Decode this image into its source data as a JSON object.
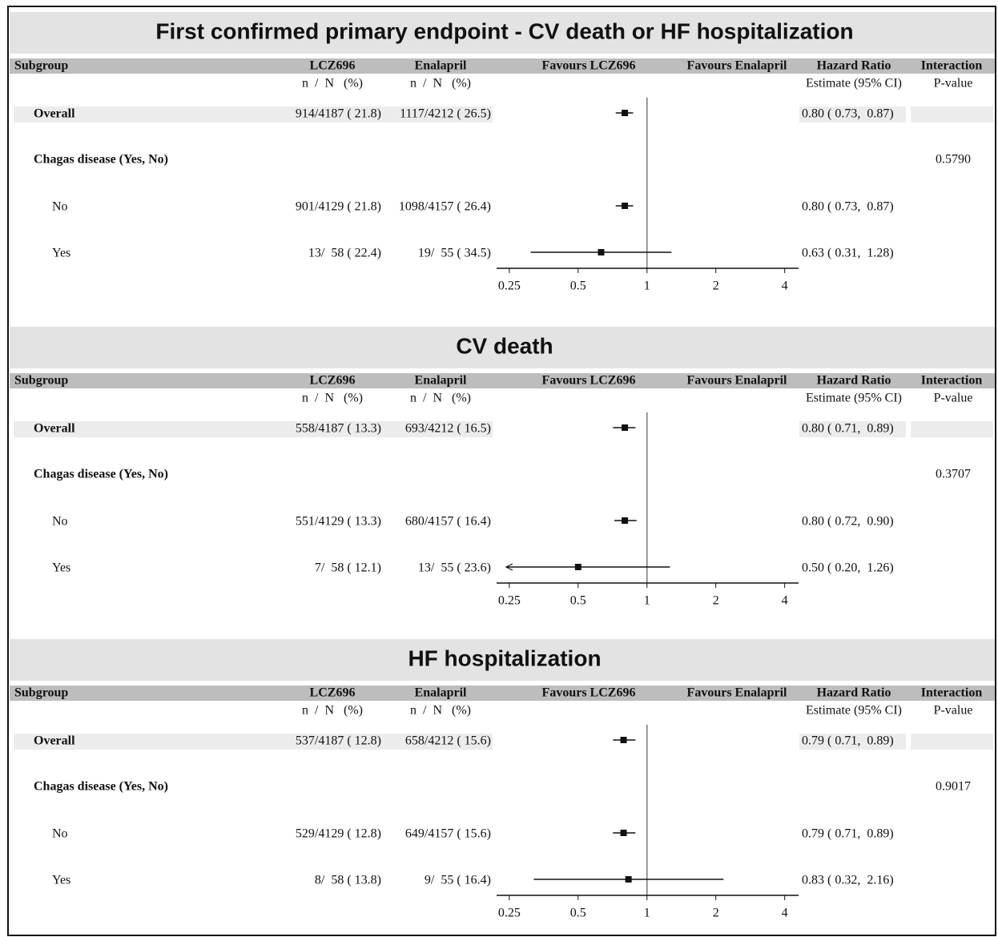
{
  "chart_data": [
    {
      "type": "forest",
      "title": "First confirmed primary endpoint - CV death or HF hospitalization",
      "headers": {
        "subgroup": "Subgroup",
        "lcz": "LCZ696",
        "enal": "Enalapril",
        "fav_left": "Favours LCZ696",
        "fav_right": "Favours Enalapril",
        "hr": "Hazard Ratio",
        "interaction": "Interaction",
        "lcz_sub": "n  /  N   (%)",
        "enal_sub": "n  /  N   (%)",
        "hr_sub": "Estimate (95% CI)",
        "int_sub": "P-value"
      },
      "rows": [
        {
          "label": "Overall",
          "lcz": "914/4187 ( 21.8)",
          "enal": "1117/4212 ( 26.5)",
          "hr_label": "0.80 ( 0.73,  0.87)",
          "estimate": 0.8,
          "lower": 0.73,
          "upper": 0.87
        },
        {
          "label": "Chagas disease (Yes, No)",
          "p_value": "0.5790"
        },
        {
          "label": "No",
          "lcz": "901/4129 ( 21.8)",
          "enal": "1098/4157 ( 26.4)",
          "hr_label": "0.80 ( 0.73,  0.87)",
          "estimate": 0.8,
          "lower": 0.73,
          "upper": 0.87
        },
        {
          "label": "Yes",
          "lcz": "13/  58 ( 22.4)",
          "enal": "19/  55 ( 34.5)",
          "hr_label": "0.63 ( 0.31,  1.28)",
          "estimate": 0.63,
          "lower": 0.31,
          "upper": 1.28
        }
      ],
      "log_x": true,
      "xlim": [
        0.22,
        4.6
      ],
      "xticks": [
        0.25,
        0.5,
        1,
        2,
        4
      ],
      "reference": 1
    },
    {
      "type": "forest",
      "title": "CV death",
      "headers": {
        "subgroup": "Subgroup",
        "lcz": "LCZ696",
        "enal": "Enalapril",
        "fav_left": "Favours LCZ696",
        "fav_right": "Favours Enalapril",
        "hr": "Hazard Ratio",
        "interaction": "Interaction",
        "lcz_sub": "n  /  N   (%)",
        "enal_sub": "n  /  N   (%)",
        "hr_sub": "Estimate (95% CI)",
        "int_sub": "P-value"
      },
      "rows": [
        {
          "label": "Overall",
          "lcz": "558/4187 ( 13.3)",
          "enal": "693/4212 ( 16.5)",
          "hr_label": "0.80 ( 0.71,  0.89)",
          "estimate": 0.8,
          "lower": 0.71,
          "upper": 0.89
        },
        {
          "label": "Chagas disease (Yes, No)",
          "p_value": "0.3707"
        },
        {
          "label": "No",
          "lcz": "551/4129 ( 13.3)",
          "enal": "680/4157 ( 16.4)",
          "hr_label": "0.80 ( 0.72,  0.90)",
          "estimate": 0.8,
          "lower": 0.72,
          "upper": 0.9
        },
        {
          "label": "Yes",
          "lcz": "7/  58 ( 12.1)",
          "enal": "13/  55 ( 23.6)",
          "hr_label": "0.50 ( 0.20,  1.26)",
          "estimate": 0.5,
          "lower": 0.2,
          "upper": 1.26
        }
      ],
      "log_x": true,
      "xlim": [
        0.22,
        4.6
      ],
      "xticks": [
        0.25,
        0.5,
        1,
        2,
        4
      ],
      "reference": 1
    },
    {
      "type": "forest",
      "title": "HF hospitalization",
      "headers": {
        "subgroup": "Subgroup",
        "lcz": "LCZ696",
        "enal": "Enalapril",
        "fav_left": "Favours LCZ696",
        "fav_right": "Favours Enalapril",
        "hr": "Hazard Ratio",
        "interaction": "Interaction",
        "lcz_sub": "n  /  N   (%)",
        "enal_sub": "n  /  N   (%)",
        "hr_sub": "Estimate (95% CI)",
        "int_sub": "P-value"
      },
      "rows": [
        {
          "label": "Overall",
          "lcz": "537/4187 ( 12.8)",
          "enal": "658/4212 ( 15.6)",
          "hr_label": "0.79 ( 0.71,  0.89)",
          "estimate": 0.79,
          "lower": 0.71,
          "upper": 0.89
        },
        {
          "label": "Chagas disease (Yes, No)",
          "p_value": "0.9017"
        },
        {
          "label": "No",
          "lcz": "529/4129 ( 12.8)",
          "enal": "649/4157 ( 15.6)",
          "hr_label": "0.79 ( 0.71,  0.89)",
          "estimate": 0.79,
          "lower": 0.71,
          "upper": 0.89
        },
        {
          "label": "Yes",
          "lcz": "8/  58 ( 13.8)",
          "enal": "9/  55 ( 16.4)",
          "hr_label": "0.83 ( 0.32,  2.16)",
          "estimate": 0.83,
          "lower": 0.32,
          "upper": 2.16
        }
      ],
      "log_x": true,
      "xlim": [
        0.22,
        4.6
      ],
      "xticks": [
        0.25,
        0.5,
        1,
        2,
        4
      ],
      "reference": 1
    }
  ]
}
